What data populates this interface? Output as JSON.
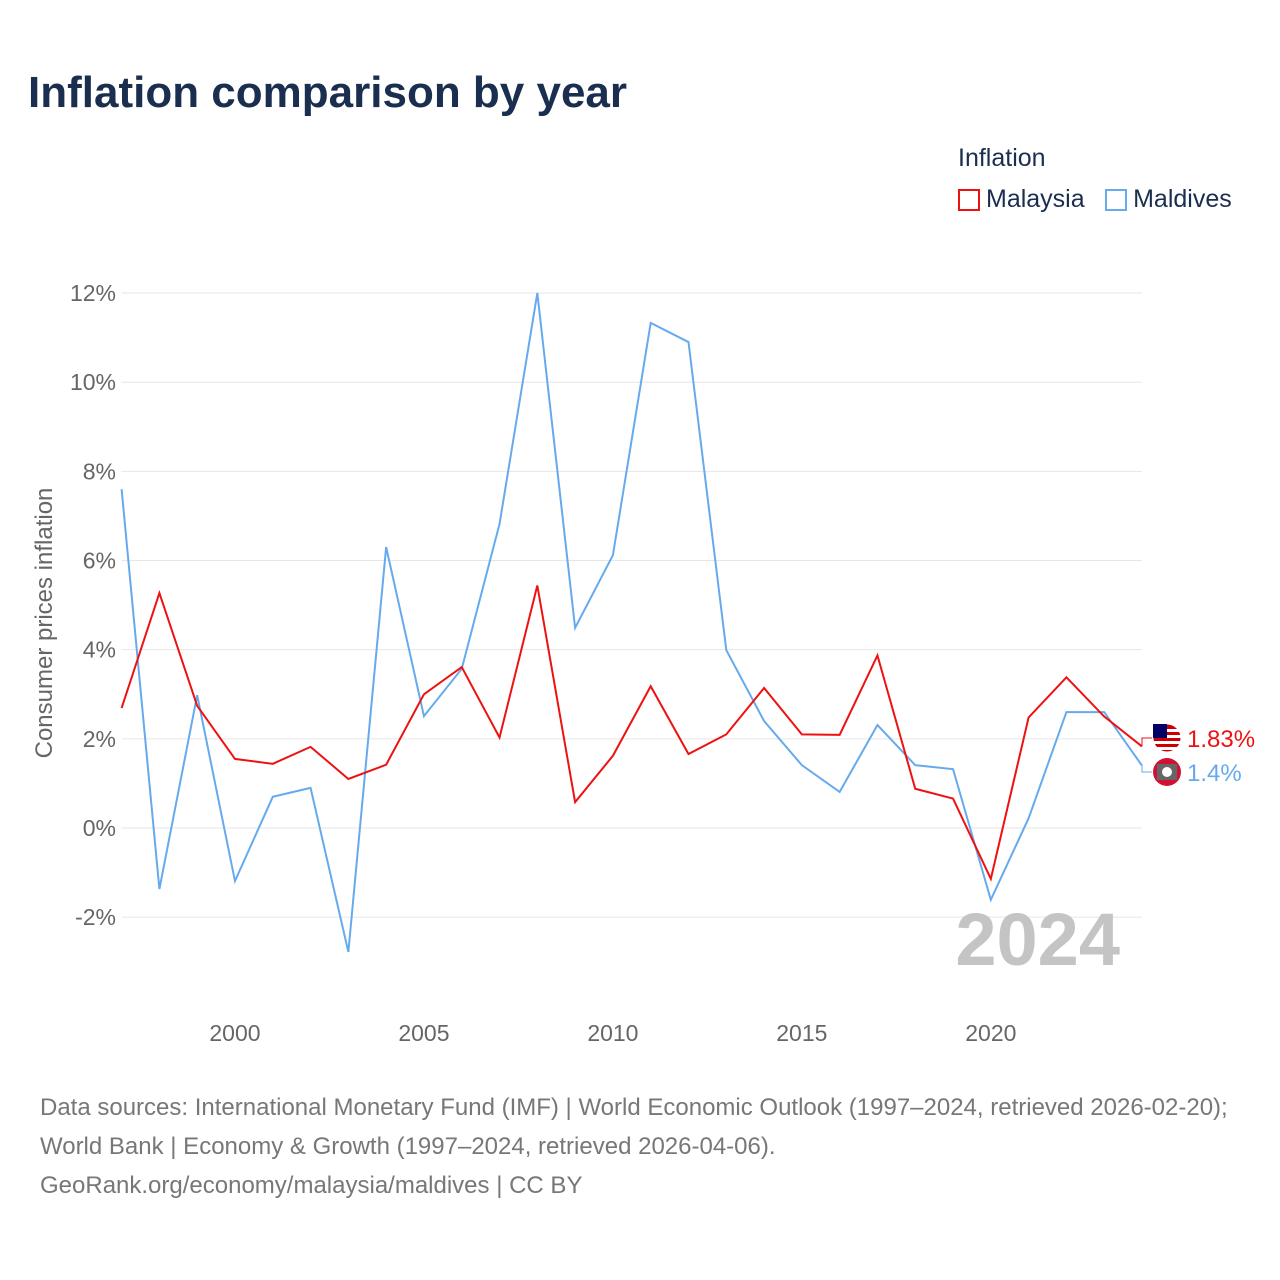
{
  "title": "Inflation comparison by year",
  "legend": {
    "title": "Inflation",
    "items": [
      {
        "name": "Malaysia",
        "color": "#ee1111"
      },
      {
        "name": "Maldives",
        "color": "#66aaee"
      }
    ]
  },
  "source": {
    "line1": "Data sources: International Monetary Fund (IMF) | World Economic Outlook (1997–2024, retrieved 2026-02-20); World Bank | Economy & Growth (1997–2024, retrieved 2026-04-06).",
    "line2": "GeoRank.org/economy/malaysia/maldives | CC BY"
  },
  "chart_data": {
    "type": "line",
    "title": "Inflation comparison by year",
    "ylabel": "Consumer prices inflation",
    "xlabel": "",
    "ylim": [
      -3.5,
      12.5
    ],
    "xlim": [
      1997,
      2024
    ],
    "yticks": [
      -2,
      0,
      2,
      4,
      6,
      8,
      10,
      12
    ],
    "ytick_labels": [
      "-2%",
      "0%",
      "2%",
      "4%",
      "6%",
      "8%",
      "10%",
      "12%"
    ],
    "xticks": [
      2000,
      2005,
      2010,
      2015,
      2020
    ],
    "xtick_labels": [
      "2000",
      "2005",
      "2010",
      "2015",
      "2020"
    ],
    "year_label": "2024",
    "grid": true,
    "legend_position": "top-right",
    "x": [
      1997,
      1998,
      1999,
      2000,
      2001,
      2002,
      2003,
      2004,
      2005,
      2006,
      2007,
      2008,
      2009,
      2010,
      2011,
      2012,
      2013,
      2014,
      2015,
      2016,
      2017,
      2018,
      2019,
      2020,
      2021,
      2022,
      2023,
      2024
    ],
    "series": [
      {
        "name": "Malaysia",
        "color": "#ee1111",
        "end_label": "1.83%",
        "values": [
          2.69,
          5.27,
          2.74,
          1.55,
          1.44,
          1.82,
          1.1,
          1.42,
          3.0,
          3.61,
          2.03,
          5.44,
          0.58,
          1.62,
          3.18,
          1.66,
          2.1,
          3.14,
          2.1,
          2.09,
          3.87,
          0.88,
          0.66,
          -1.14,
          2.48,
          3.38,
          2.5,
          1.83
        ]
      },
      {
        "name": "Maldives",
        "color": "#66aaee",
        "end_label": "1.4%",
        "values": [
          7.6,
          -1.37,
          2.98,
          -1.19,
          0.7,
          0.9,
          -2.78,
          6.3,
          2.51,
          3.57,
          6.82,
          12.0,
          4.49,
          6.12,
          11.33,
          10.9,
          3.99,
          2.4,
          1.41,
          0.81,
          2.31,
          1.41,
          1.32,
          -1.61,
          0.22,
          2.6,
          2.6,
          1.4
        ]
      }
    ]
  }
}
